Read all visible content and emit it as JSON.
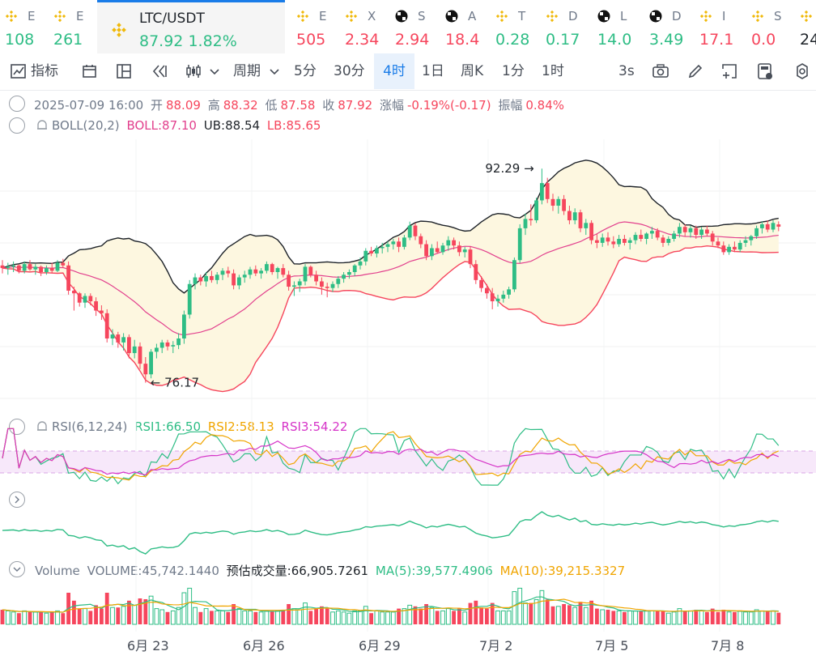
{
  "ticker": [
    {
      "name": "E",
      "price": "108",
      "dir": "up",
      "icon": "binance-icon"
    },
    {
      "name": "E",
      "price": "261",
      "dir": "up",
      "icon": "binance-icon"
    },
    {
      "name": "E",
      "price": "505",
      "dir": "down",
      "icon": "binance-icon"
    },
    {
      "name": "X",
      "price": "2.34",
      "dir": "down",
      "icon": "binance-icon"
    },
    {
      "name": "S",
      "price": "2.94",
      "dir": "down",
      "icon": "checker-icon"
    },
    {
      "name": "A",
      "price": "18.4",
      "dir": "down",
      "icon": "checker-icon"
    },
    {
      "name": "T",
      "price": "0.28",
      "dir": "up",
      "icon": "binance-icon"
    },
    {
      "name": "D",
      "price": "0.17",
      "dir": "up",
      "icon": "binance-icon"
    },
    {
      "name": "L",
      "price": "14.0",
      "dir": "up",
      "icon": "checker-icon"
    },
    {
      "name": "D",
      "price": "3.49",
      "dir": "up",
      "icon": "checker-icon"
    },
    {
      "name": "I",
      "price": "17.1",
      "dir": "down",
      "icon": "binance-icon"
    },
    {
      "name": "S",
      "price": "0.0",
      "dir": "down",
      "icon": "binance-icon"
    },
    {
      "name": "",
      "price": "24",
      "dir": "dark",
      "icon": "binance-icon"
    }
  ],
  "active_ticker": {
    "symbol": "LTC/USDT",
    "price": "87.92",
    "change": "1.82%"
  },
  "toolbar": {
    "indicators": "指标",
    "period": "周期",
    "intervals": [
      "5分",
      "30分",
      "4时",
      "1日",
      "周K",
      "1分",
      "1时"
    ],
    "active_interval": "4时",
    "refresh": "3s"
  },
  "ohlc": {
    "datetime": "2025-07-09 16:00",
    "open_label": "开",
    "open": "88.09",
    "high_label": "高",
    "high": "88.32",
    "low_label": "低",
    "low": "87.58",
    "close_label": "收",
    "close": "87.92",
    "change_label": "涨幅",
    "change": "-0.19%(-0.17)",
    "amplitude_label": "振幅",
    "amplitude": "0.84%"
  },
  "boll": {
    "name": "BOLL(20,2)",
    "mid": "BOLL:87.10",
    "ub": "UB:88.54",
    "lb": "LB:85.65"
  },
  "rsi": {
    "name": "RSI(6,12,24)",
    "rsi1": "RSI1:66.50",
    "rsi2": "RSI2:58.13",
    "rsi3": "RSI3:54.22"
  },
  "volume": {
    "name": "Volume",
    "value": "VOLUME:45,742.1440",
    "est": "预估成交量:66,905.7261",
    "ma5": "MA(5):39,577.4906",
    "ma10": "MA(10):39,215.3327"
  },
  "price_markers": {
    "high": "92.29",
    "low": "76.17"
  },
  "x_axis": [
    "6月 23",
    "6月 26",
    "6月 29",
    "7月 2",
    "7月 5",
    "7月 8"
  ],
  "colors": {
    "up": "#2ebd85",
    "down": "#f6465d",
    "accent": "#1a7ce8",
    "ub": "#1e2329",
    "mid": "#e2408d",
    "lb": "#f6465d",
    "band": "#fdf7e0"
  },
  "chart_data": {
    "type": "candlestick",
    "price_range": [
      74.5,
      94.5
    ],
    "candles": [
      [
        85.0,
        85.4,
        84.4,
        84.8
      ],
      [
        84.8,
        85.2,
        84.3,
        84.9
      ],
      [
        84.9,
        85.3,
        84.5,
        85.0
      ],
      [
        85.0,
        85.1,
        84.4,
        84.6
      ],
      [
        84.6,
        85.3,
        84.4,
        85.1
      ],
      [
        85.1,
        85.4,
        84.6,
        84.7
      ],
      [
        84.7,
        85.1,
        84.3,
        84.9
      ],
      [
        84.9,
        85.0,
        84.2,
        84.5
      ],
      [
        84.5,
        85.0,
        84.3,
        84.8
      ],
      [
        84.8,
        85.2,
        84.4,
        84.6
      ],
      [
        84.6,
        85.4,
        84.5,
        85.2
      ],
      [
        85.2,
        85.5,
        84.8,
        85.0
      ],
      [
        85.0,
        85.3,
        82.8,
        83.1
      ],
      [
        83.1,
        83.4,
        81.6,
        82.9
      ],
      [
        82.9,
        83.0,
        81.9,
        82.2
      ],
      [
        82.2,
        82.9,
        81.8,
        82.7
      ],
      [
        82.7,
        82.9,
        82.0,
        82.3
      ],
      [
        82.3,
        82.6,
        81.2,
        81.6
      ],
      [
        81.6,
        82.0,
        80.9,
        81.4
      ],
      [
        81.4,
        81.7,
        79.2,
        79.5
      ],
      [
        79.5,
        80.2,
        79.0,
        79.8
      ],
      [
        79.8,
        80.0,
        78.8,
        79.2
      ],
      [
        79.2,
        79.9,
        78.6,
        79.6
      ],
      [
        79.6,
        79.8,
        78.0,
        78.4
      ],
      [
        78.4,
        79.4,
        78.0,
        78.9
      ],
      [
        78.9,
        79.2,
        77.2,
        77.6
      ],
      [
        77.6,
        78.1,
        76.17,
        76.8
      ],
      [
        76.8,
        78.7,
        76.5,
        78.5
      ],
      [
        78.5,
        79.1,
        78.0,
        78.8
      ],
      [
        78.8,
        79.4,
        78.4,
        79.2
      ],
      [
        79.2,
        79.4,
        78.6,
        78.9
      ],
      [
        78.9,
        79.3,
        78.4,
        79.0
      ],
      [
        79.0,
        79.9,
        78.7,
        79.5
      ],
      [
        79.5,
        81.6,
        79.1,
        81.3
      ],
      [
        81.3,
        83.9,
        81.0,
        83.6
      ],
      [
        83.6,
        84.4,
        83.2,
        84.1
      ],
      [
        84.1,
        84.3,
        83.5,
        83.8
      ],
      [
        83.8,
        84.5,
        83.4,
        84.2
      ],
      [
        84.2,
        84.6,
        83.7,
        83.9
      ],
      [
        83.9,
        84.5,
        83.6,
        84.3
      ],
      [
        84.3,
        84.8,
        83.9,
        84.6
      ],
      [
        84.6,
        84.9,
        84.1,
        84.4
      ],
      [
        84.4,
        84.7,
        83.2,
        83.5
      ],
      [
        83.5,
        84.3,
        83.2,
        84.1
      ],
      [
        84.1,
        84.6,
        83.7,
        84.3
      ],
      [
        84.3,
        84.9,
        84.0,
        84.7
      ],
      [
        84.7,
        85.0,
        84.2,
        84.4
      ],
      [
        84.4,
        84.8,
        84.0,
        84.6
      ],
      [
        84.6,
        85.3,
        84.4,
        85.1
      ],
      [
        85.1,
        85.2,
        84.3,
        84.5
      ],
      [
        84.5,
        84.9,
        84.0,
        84.8
      ],
      [
        84.8,
        85.1,
        84.1,
        84.3
      ],
      [
        84.3,
        84.6,
        83.1,
        83.4
      ],
      [
        83.4,
        83.8,
        82.7,
        83.5
      ],
      [
        83.5,
        84.0,
        83.0,
        83.8
      ],
      [
        83.8,
        85.1,
        83.5,
        84.9
      ],
      [
        84.9,
        85.0,
        84.1,
        84.3
      ],
      [
        84.3,
        84.6,
        83.5,
        83.8
      ],
      [
        83.8,
        84.1,
        82.8,
        83.4
      ],
      [
        83.4,
        83.7,
        82.6,
        83.3
      ],
      [
        83.3,
        83.8,
        83.0,
        83.6
      ],
      [
        83.6,
        84.2,
        83.3,
        84.0
      ],
      [
        84.0,
        84.5,
        83.7,
        84.3
      ],
      [
        84.3,
        84.7,
        84.0,
        84.5
      ],
      [
        84.5,
        85.1,
        84.2,
        85.0
      ],
      [
        85.0,
        85.6,
        84.7,
        85.3
      ],
      [
        85.3,
        86.3,
        85.0,
        86.1
      ],
      [
        86.1,
        86.4,
        85.7,
        85.9
      ],
      [
        85.9,
        86.5,
        85.6,
        86.3
      ],
      [
        86.3,
        86.7,
        85.9,
        86.4
      ],
      [
        86.4,
        86.8,
        86.0,
        86.6
      ],
      [
        86.6,
        87.0,
        86.2,
        86.8
      ],
      [
        86.8,
        87.1,
        86.0,
        86.4
      ],
      [
        86.4,
        87.3,
        86.2,
        87.1
      ],
      [
        87.1,
        88.3,
        86.9,
        88.0
      ],
      [
        88.0,
        88.2,
        86.9,
        87.2
      ],
      [
        87.2,
        87.4,
        86.3,
        86.6
      ],
      [
        86.6,
        86.9,
        85.4,
        85.7
      ],
      [
        85.7,
        86.6,
        85.4,
        86.3
      ],
      [
        86.3,
        86.8,
        85.9,
        86.0
      ],
      [
        86.0,
        86.7,
        85.8,
        86.5
      ],
      [
        86.5,
        87.2,
        86.1,
        86.9
      ],
      [
        86.9,
        87.1,
        86.2,
        86.5
      ],
      [
        86.5,
        86.8,
        85.7,
        86.0
      ],
      [
        86.0,
        86.4,
        85.6,
        86.2
      ],
      [
        86.2,
        86.4,
        84.8,
        85.1
      ],
      [
        85.1,
        85.4,
        83.6,
        83.9
      ],
      [
        83.9,
        84.2,
        83.0,
        83.3
      ],
      [
        83.3,
        83.6,
        82.5,
        82.9
      ],
      [
        82.9,
        83.3,
        81.7,
        82.3
      ],
      [
        82.3,
        82.8,
        81.9,
        82.5
      ],
      [
        82.5,
        83.1,
        82.2,
        82.8
      ],
      [
        82.8,
        83.4,
        82.5,
        83.2
      ],
      [
        83.2,
        85.6,
        83.0,
        85.4
      ],
      [
        85.4,
        88.1,
        85.2,
        87.8
      ],
      [
        87.8,
        88.9,
        87.3,
        88.5
      ],
      [
        88.5,
        89.6,
        88.0,
        88.4
      ],
      [
        88.4,
        90.1,
        88.2,
        89.9
      ],
      [
        89.9,
        92.29,
        89.6,
        91.2
      ],
      [
        91.2,
        91.6,
        89.7,
        90.0
      ],
      [
        90.0,
        90.4,
        89.1,
        89.5
      ],
      [
        89.5,
        90.2,
        88.9,
        90.0
      ],
      [
        90.0,
        90.3,
        88.8,
        89.1
      ],
      [
        89.1,
        89.5,
        88.1,
        88.4
      ],
      [
        88.4,
        89.3,
        88.1,
        89.0
      ],
      [
        89.0,
        89.2,
        87.5,
        87.8
      ],
      [
        87.8,
        88.5,
        87.3,
        88.2
      ],
      [
        88.2,
        88.4,
        86.6,
        86.9
      ],
      [
        86.9,
        87.4,
        86.3,
        86.7
      ],
      [
        86.7,
        87.4,
        86.4,
        87.1
      ],
      [
        87.1,
        87.5,
        86.5,
        86.8
      ],
      [
        86.8,
        87.2,
        86.3,
        86.6
      ],
      [
        86.6,
        87.3,
        86.4,
        87.0
      ],
      [
        87.0,
        87.3,
        86.5,
        86.7
      ],
      [
        86.7,
        87.1,
        86.2,
        86.9
      ],
      [
        86.9,
        87.5,
        86.6,
        87.3
      ],
      [
        87.3,
        87.7,
        86.8,
        87.0
      ],
      [
        87.0,
        87.5,
        86.6,
        87.4
      ],
      [
        87.4,
        87.9,
        87.0,
        87.6
      ],
      [
        87.6,
        87.8,
        86.9,
        87.1
      ],
      [
        87.1,
        87.3,
        86.4,
        86.7
      ],
      [
        86.7,
        87.2,
        86.5,
        87.0
      ],
      [
        87.0,
        87.6,
        86.8,
        87.4
      ],
      [
        87.4,
        88.2,
        87.1,
        87.9
      ],
      [
        87.9,
        88.1,
        87.2,
        87.5
      ],
      [
        87.5,
        88.0,
        87.1,
        87.8
      ],
      [
        87.8,
        88.0,
        87.0,
        87.3
      ],
      [
        87.3,
        87.9,
        87.0,
        87.7
      ],
      [
        87.7,
        88.0,
        87.2,
        87.4
      ],
      [
        87.4,
        87.6,
        86.5,
        86.8
      ],
      [
        86.8,
        87.1,
        86.3,
        86.5
      ],
      [
        86.5,
        86.8,
        85.8,
        86.0
      ],
      [
        86.0,
        86.6,
        85.8,
        86.4
      ],
      [
        86.4,
        86.8,
        86.0,
        86.2
      ],
      [
        86.2,
        86.9,
        86.0,
        86.7
      ],
      [
        86.7,
        87.2,
        86.4,
        86.9
      ],
      [
        86.9,
        87.3,
        86.5,
        87.2
      ],
      [
        87.2,
        88.0,
        87.0,
        87.8
      ],
      [
        87.8,
        88.3,
        87.4,
        88.1
      ],
      [
        88.1,
        88.4,
        87.5,
        87.7
      ],
      [
        87.7,
        88.4,
        87.5,
        88.2
      ],
      [
        88.09,
        88.32,
        87.58,
        87.92
      ]
    ]
  }
}
